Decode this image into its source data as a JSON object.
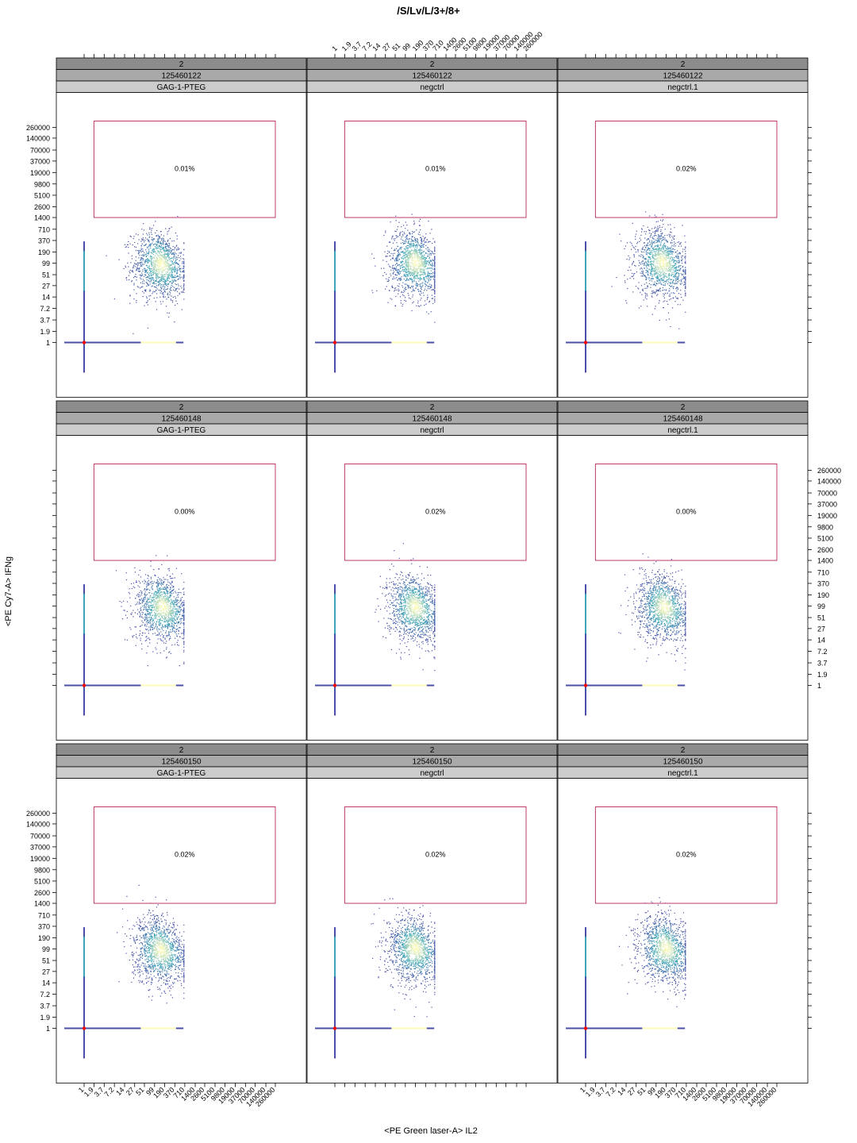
{
  "title": "/S/Lv/L/3+/8+",
  "xlabel": "<PE Green laser-A> IL2",
  "ylabel": "<PE Cy7-A> IFNg",
  "tick_labels": [
    "1",
    "1.9",
    "3.7",
    "7.2",
    "14",
    "27",
    "51",
    "99",
    "190",
    "370",
    "710",
    "1400",
    "2600",
    "5100",
    "9800",
    "19000",
    "37000",
    "70000",
    "140000",
    "260000"
  ],
  "colors": {
    "strip_dark": "#8c8c8c",
    "strip_mid": "#a9a9a9",
    "strip_light": "#cccccc",
    "gate": "#c0396b",
    "density_low": "#4a4fa8",
    "density_mid": "#3fa6b8",
    "density_high": "#fffbb8",
    "origin_marker": "#ff0000"
  },
  "chart_data": {
    "type": "scatter",
    "layout": "3x3 lattice of flow-cytometry density plots",
    "x_scale": "log",
    "y_scale": "log",
    "xlim": [
      1,
      260000
    ],
    "ylim": [
      1,
      260000
    ],
    "gate": {
      "x": [
        1.9,
        260000
      ],
      "y": [
        1400,
        260000
      ]
    },
    "panels": [
      {
        "row": 0,
        "col": 0,
        "strip1": "2",
        "strip2": "125460122",
        "strip3": "GAG-1-PTEG",
        "percent": "0.01%",
        "cluster": [
          150,
          99
        ]
      },
      {
        "row": 0,
        "col": 1,
        "strip1": "2",
        "strip2": "125460122",
        "strip3": "negctrl",
        "percent": "0.01%",
        "cluster": [
          190,
          110
        ]
      },
      {
        "row": 0,
        "col": 2,
        "strip1": "2",
        "strip2": "125460122",
        "strip3": "negctrl.1",
        "percent": "0.02%",
        "cluster": [
          150,
          110
        ]
      },
      {
        "row": 1,
        "col": 0,
        "strip1": "2",
        "strip2": "125460148",
        "strip3": "GAG-1-PTEG",
        "percent": "0.00%",
        "cluster": [
          170,
          99
        ]
      },
      {
        "row": 1,
        "col": 1,
        "strip1": "2",
        "strip2": "125460148",
        "strip3": "negctrl",
        "percent": "0.02%",
        "cluster": [
          190,
          99
        ]
      },
      {
        "row": 1,
        "col": 2,
        "strip1": "2",
        "strip2": "125460148",
        "strip3": "negctrl.1",
        "percent": "0.00%",
        "cluster": [
          170,
          99
        ]
      },
      {
        "row": 2,
        "col": 0,
        "strip1": "2",
        "strip2": "125460150",
        "strip3": "GAG-1-PTEG",
        "percent": "0.02%",
        "cluster": [
          150,
          99
        ]
      },
      {
        "row": 2,
        "col": 1,
        "strip1": "2",
        "strip2": "125460150",
        "strip3": "negctrl",
        "percent": "0.02%",
        "cluster": [
          190,
          110
        ]
      },
      {
        "row": 2,
        "col": 2,
        "strip1": "2",
        "strip2": "125460150",
        "strip3": "negctrl.1",
        "percent": "0.02%",
        "cluster": [
          190,
          110
        ]
      }
    ]
  }
}
